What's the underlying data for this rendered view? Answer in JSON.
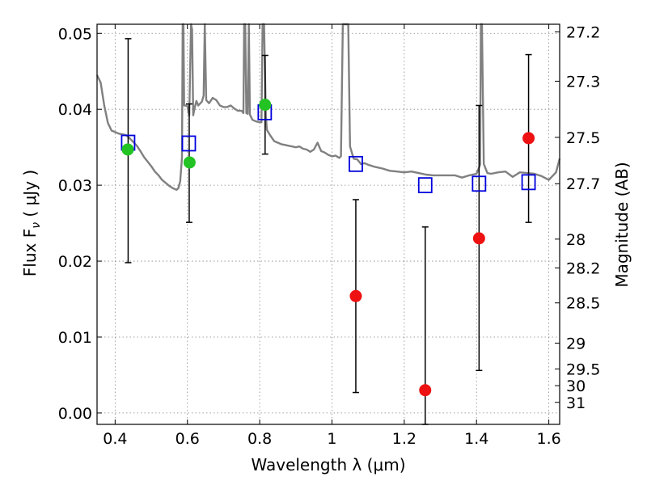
{
  "chart_data": {
    "type": "scatter",
    "title": "",
    "xlabel": "Wavelength  λ (μm)",
    "ylabel": "Flux  F",
    "ylabel_subscript": "ν",
    "ylabel_unit": " ( μJy )",
    "y2label": "Magnitude (AB)",
    "xlim": [
      0.35,
      1.63
    ],
    "ylim": [
      -0.0015,
      0.0512
    ],
    "grid": true,
    "x_ticks": [
      0.4,
      0.6,
      0.8,
      1.0,
      1.2,
      1.4,
      1.6
    ],
    "x_tick_labels": [
      "0.4",
      "0.6",
      "0.8",
      "1",
      "1.2",
      "1.4",
      "1.6"
    ],
    "y_ticks": [
      0.0,
      0.01,
      0.02,
      0.03,
      0.04,
      0.05
    ],
    "y_tick_labels": [
      "0.00",
      "0.01",
      "0.02",
      "0.03",
      "0.04",
      "0.05"
    ],
    "y2_ticks": [
      {
        "flux": 0.0502,
        "label": "27.2"
      },
      {
        "flux": 0.0437,
        "label": "27.3"
      },
      {
        "flux": 0.0363,
        "label": "27.5"
      },
      {
        "flux": 0.0302,
        "label": "27.7"
      },
      {
        "flux": 0.0229,
        "label": "28"
      },
      {
        "flux": 0.0191,
        "label": "28.2"
      },
      {
        "flux": 0.0145,
        "label": "28.5"
      },
      {
        "flux": 0.0092,
        "label": "29"
      },
      {
        "flux": 0.0058,
        "label": "29.5"
      },
      {
        "flux": 0.0036,
        "label": "30"
      },
      {
        "flux": 0.0014,
        "label": "31"
      }
    ],
    "colors": {
      "model": "#808080",
      "green": "#22c322",
      "red": "#ee1111",
      "squares": "#0000dd",
      "errorbars": "#000000",
      "grid": "#888888"
    },
    "series": [
      {
        "kind": "model_line",
        "x": [
          0.35,
          0.36,
          0.37,
          0.38,
          0.39,
          0.4,
          0.41,
          0.42,
          0.43,
          0.44,
          0.45,
          0.46,
          0.47,
          0.48,
          0.49,
          0.5,
          0.51,
          0.52,
          0.53,
          0.54,
          0.55,
          0.56,
          0.57,
          0.575,
          0.58,
          0.585,
          0.587,
          0.589,
          0.591,
          0.595,
          0.6,
          0.605,
          0.61,
          0.613,
          0.616,
          0.62,
          0.625,
          0.63,
          0.64,
          0.645,
          0.648,
          0.652,
          0.66,
          0.67,
          0.68,
          0.69,
          0.7,
          0.71,
          0.72,
          0.73,
          0.74,
          0.75,
          0.755,
          0.757,
          0.76,
          0.763,
          0.767,
          0.77,
          0.773,
          0.78,
          0.79,
          0.8,
          0.805,
          0.808,
          0.812,
          0.817,
          0.82,
          0.83,
          0.84,
          0.85,
          0.86,
          0.87,
          0.88,
          0.89,
          0.9,
          0.91,
          0.92,
          0.93,
          0.94,
          0.95,
          0.96,
          0.97,
          0.98,
          0.99,
          1.0,
          1.01,
          1.02,
          1.025,
          1.03,
          1.035,
          1.04,
          1.045,
          1.05,
          1.06,
          1.07,
          1.08,
          1.09,
          1.1,
          1.12,
          1.14,
          1.16,
          1.18,
          1.2,
          1.22,
          1.24,
          1.26,
          1.28,
          1.3,
          1.32,
          1.34,
          1.36,
          1.38,
          1.4,
          1.41,
          1.412,
          1.415,
          1.42,
          1.43,
          1.44,
          1.46,
          1.48,
          1.5,
          1.52,
          1.54,
          1.56,
          1.58,
          1.6,
          1.62,
          1.63
        ],
        "y": [
          0.0445,
          0.0435,
          0.0405,
          0.0382,
          0.0372,
          0.037,
          0.0368,
          0.0367,
          0.0366,
          0.0362,
          0.0357,
          0.0352,
          0.0345,
          0.0337,
          0.0331,
          0.0325,
          0.0318,
          0.0313,
          0.0307,
          0.0303,
          0.0299,
          0.0296,
          0.0294,
          0.0296,
          0.0305,
          0.0336,
          0.0512,
          0.0512,
          0.0405,
          0.0405,
          0.0404,
          0.0392,
          0.0512,
          0.0505,
          0.0392,
          0.0402,
          0.0411,
          0.0405,
          0.041,
          0.0418,
          0.0512,
          0.0412,
          0.0408,
          0.0415,
          0.0412,
          0.0405,
          0.0403,
          0.0403,
          0.0405,
          0.0401,
          0.0398,
          0.0398,
          0.0395,
          0.0512,
          0.0512,
          0.0395,
          0.0394,
          0.0512,
          0.0393,
          0.0386,
          0.0384,
          0.0383,
          0.0383,
          0.0512,
          0.0512,
          0.0392,
          0.0373,
          0.0365,
          0.0358,
          0.0356,
          0.0354,
          0.0353,
          0.0352,
          0.0351,
          0.035,
          0.0351,
          0.0348,
          0.0347,
          0.0344,
          0.0347,
          0.0356,
          0.0345,
          0.0343,
          0.034,
          0.0338,
          0.0339,
          0.0336,
          0.0338,
          0.0512,
          0.0512,
          0.0512,
          0.0512,
          0.0351,
          0.0335,
          0.0334,
          0.0328,
          0.0329,
          0.0327,
          0.0324,
          0.0322,
          0.0319,
          0.0318,
          0.0317,
          0.0318,
          0.0316,
          0.0314,
          0.0313,
          0.0313,
          0.0313,
          0.0313,
          0.031,
          0.0313,
          0.0315,
          0.0327,
          0.0512,
          0.0512,
          0.0328,
          0.0316,
          0.0315,
          0.0317,
          0.0318,
          0.0311,
          0.0317,
          0.0316,
          0.0315,
          0.0312,
          0.0307,
          0.0317,
          0.0335
        ]
      },
      {
        "kind": "squares",
        "x": [
          0.436,
          0.604,
          0.814,
          1.066,
          1.258,
          1.407,
          1.544
        ],
        "y": [
          0.0356,
          0.0355,
          0.0396,
          0.0328,
          0.03,
          0.0302,
          0.0304
        ]
      },
      {
        "kind": "green_points",
        "x": [
          0.435,
          0.606,
          0.815
        ],
        "y": [
          0.0347,
          0.033,
          0.0406
        ]
      },
      {
        "kind": "red_points",
        "x": [
          1.066,
          1.258,
          1.407,
          1.544
        ],
        "y": [
          0.0154,
          0.003,
          0.023,
          0.0362
        ]
      },
      {
        "kind": "errorbars",
        "x": [
          0.436,
          0.605,
          0.815,
          1.066,
          1.258,
          1.407,
          1.544
        ],
        "low": [
          0.0198,
          0.0251,
          0.0341,
          0.0027,
          -0.0015,
          0.0056,
          0.0251
        ],
        "high": [
          0.0493,
          0.0407,
          0.0471,
          0.0281,
          0.0245,
          0.0405,
          0.0472
        ]
      }
    ]
  }
}
